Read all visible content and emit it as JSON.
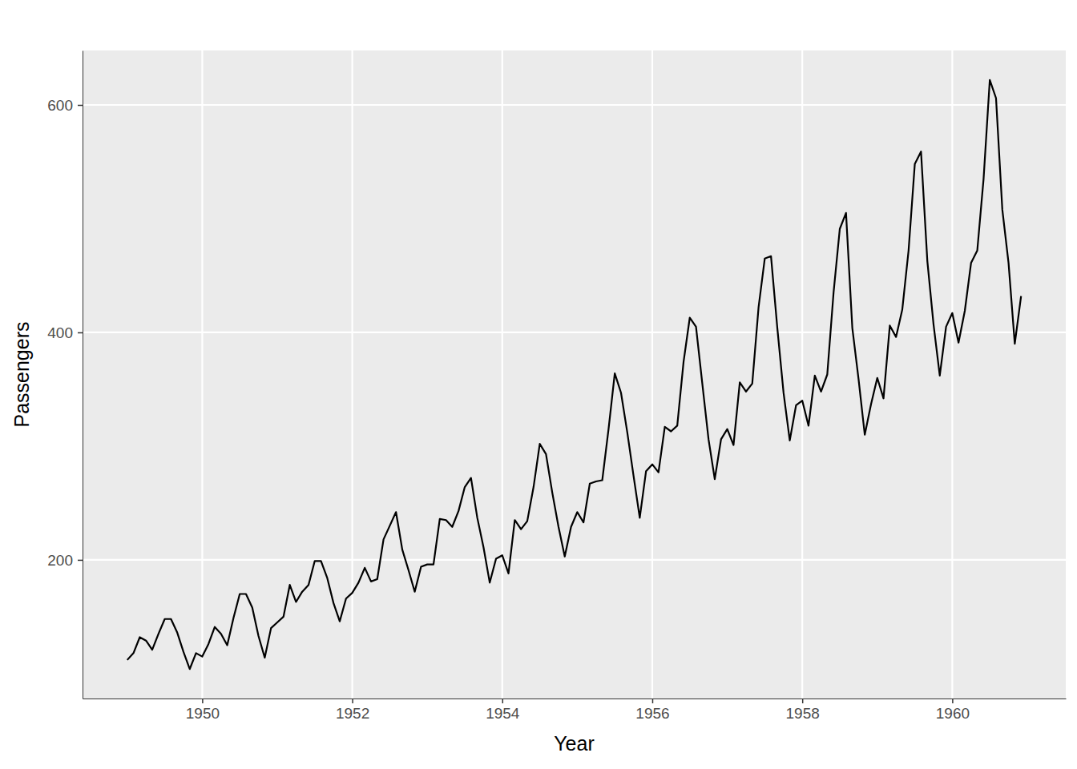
{
  "chart_data": {
    "type": "line",
    "x_label": "Year",
    "y_label": "Passengers",
    "color": "#000000",
    "grid": true,
    "xlim": [
      1948.404,
      1961.513
    ],
    "xticks": [
      1950,
      1952,
      1954,
      1956,
      1958,
      1960
    ],
    "ylim": [
      78.1,
      647.9
    ],
    "yticks": [
      200,
      400,
      600
    ],
    "x": [
      1949.0,
      1949.083,
      1949.167,
      1949.25,
      1949.333,
      1949.417,
      1949.5,
      1949.583,
      1949.667,
      1949.75,
      1949.833,
      1949.917,
      1950.0,
      1950.083,
      1950.167,
      1950.25,
      1950.333,
      1950.417,
      1950.5,
      1950.583,
      1950.667,
      1950.75,
      1950.833,
      1950.917,
      1951.0,
      1951.083,
      1951.167,
      1951.25,
      1951.333,
      1951.417,
      1951.5,
      1951.583,
      1951.667,
      1951.75,
      1951.833,
      1951.917,
      1952.0,
      1952.083,
      1952.167,
      1952.25,
      1952.333,
      1952.417,
      1952.5,
      1952.583,
      1952.667,
      1952.75,
      1952.833,
      1952.917,
      1953.0,
      1953.083,
      1953.167,
      1953.25,
      1953.333,
      1953.417,
      1953.5,
      1953.583,
      1953.667,
      1953.75,
      1953.833,
      1953.917,
      1954.0,
      1954.083,
      1954.167,
      1954.25,
      1954.333,
      1954.417,
      1954.5,
      1954.583,
      1954.667,
      1954.75,
      1954.833,
      1954.917,
      1955.0,
      1955.083,
      1955.167,
      1955.25,
      1955.333,
      1955.417,
      1955.5,
      1955.583,
      1955.667,
      1955.75,
      1955.833,
      1955.917,
      1956.0,
      1956.083,
      1956.167,
      1956.25,
      1956.333,
      1956.417,
      1956.5,
      1956.583,
      1956.667,
      1956.75,
      1956.833,
      1956.917,
      1957.0,
      1957.083,
      1957.167,
      1957.25,
      1957.333,
      1957.417,
      1957.5,
      1957.583,
      1957.667,
      1957.75,
      1957.833,
      1957.917,
      1958.0,
      1958.083,
      1958.167,
      1958.25,
      1958.333,
      1958.417,
      1958.5,
      1958.583,
      1958.667,
      1958.75,
      1958.833,
      1958.917,
      1959.0,
      1959.083,
      1959.167,
      1959.25,
      1959.333,
      1959.417,
      1959.5,
      1959.583,
      1959.667,
      1959.75,
      1959.833,
      1959.917,
      1960.0,
      1960.083,
      1960.167,
      1960.25,
      1960.333,
      1960.417,
      1960.5,
      1960.583,
      1960.667,
      1960.75,
      1960.833,
      1960.917
    ],
    "values": [
      112,
      118,
      132,
      129,
      121,
      135,
      148,
      148,
      136,
      119,
      104,
      118,
      115,
      126,
      141,
      135,
      125,
      149,
      170,
      170,
      158,
      133,
      114,
      140,
      145,
      150,
      178,
      163,
      172,
      178,
      199,
      199,
      184,
      162,
      146,
      166,
      171,
      180,
      193,
      181,
      183,
      218,
      230,
      242,
      209,
      191,
      172,
      194,
      196,
      196,
      236,
      235,
      229,
      243,
      264,
      272,
      237,
      211,
      180,
      201,
      204,
      188,
      235,
      227,
      234,
      264,
      302,
      293,
      259,
      229,
      203,
      229,
      242,
      233,
      267,
      269,
      270,
      315,
      364,
      347,
      312,
      274,
      237,
      278,
      284,
      277,
      317,
      313,
      318,
      374,
      413,
      405,
      355,
      306,
      271,
      306,
      315,
      301,
      356,
      348,
      355,
      422,
      465,
      467,
      404,
      347,
      305,
      336,
      340,
      318,
      362,
      348,
      363,
      435,
      491,
      505,
      404,
      359,
      310,
      337,
      360,
      342,
      406,
      396,
      420,
      472,
      548,
      559,
      463,
      407,
      362,
      405,
      417,
      391,
      419,
      461,
      472,
      535,
      622,
      606,
      508,
      461,
      390,
      432
    ]
  }
}
